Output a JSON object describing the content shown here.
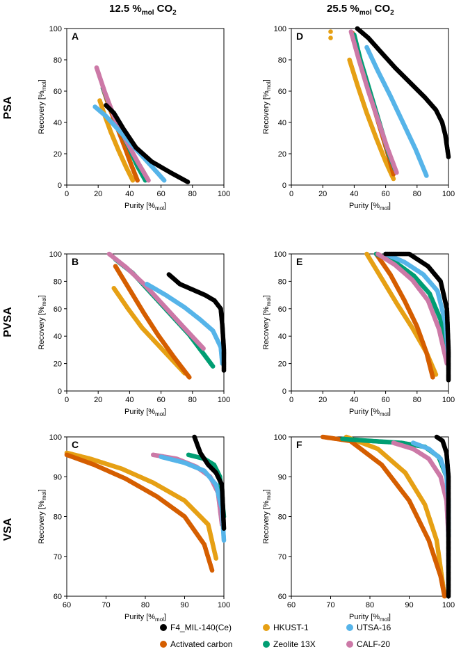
{
  "column_titles": [
    {
      "main": "12.5 %",
      "sub": "mol",
      "tail": " CO",
      "tail_sub": "2"
    },
    {
      "main": "25.5 %",
      "sub": "mol",
      "tail": " CO",
      "tail_sub": "2"
    }
  ],
  "row_titles": [
    "PSA",
    "PVSA",
    "VSA"
  ],
  "axis_labels": {
    "x": "Purity [%",
    "x_sub": "mol",
    "x_end": "]",
    "y": "Recovery [%",
    "y_sub": "mol",
    "y_end": "]"
  },
  "legend": [
    {
      "name": "F4_MIL-140(Ce)",
      "color": "#000000"
    },
    {
      "name": "HKUST-1",
      "color": "#E6A014"
    },
    {
      "name": "UTSA-16",
      "color": "#56B4E9"
    },
    {
      "name": "Activated carbon",
      "color": "#D55E00"
    },
    {
      "name": "Zeolite 13X",
      "color": "#009E73"
    },
    {
      "name": "CALF-20",
      "color": "#CC79A7"
    }
  ],
  "chart_data": [
    {
      "panel": "A",
      "type": "scatter",
      "xlim": [
        0,
        100
      ],
      "ylim": [
        0,
        100
      ],
      "xticks": [
        0,
        20,
        40,
        60,
        80,
        100
      ],
      "yticks": [
        0,
        20,
        40,
        60,
        80,
        100
      ],
      "series": [
        {
          "name": "HKUST-1",
          "x": [
            21,
            24,
            28,
            33,
            38,
            42
          ],
          "y": [
            54,
            45,
            34,
            22,
            11,
            3
          ]
        },
        {
          "name": "Activated carbon",
          "x": [
            23,
            27,
            32,
            37,
            41,
            45
          ],
          "y": [
            62,
            50,
            37,
            24,
            13,
            3
          ]
        },
        {
          "name": "Zeolite 13X",
          "x": [
            23,
            28,
            34,
            40,
            45,
            50
          ],
          "y": [
            62,
            49,
            36,
            23,
            12,
            3
          ]
        },
        {
          "name": "CALF-20",
          "x": [
            19,
            24,
            30,
            38,
            45,
            52
          ],
          "y": [
            75,
            60,
            44,
            28,
            15,
            3
          ]
        },
        {
          "name": "UTSA-16",
          "x": [
            18,
            25,
            34,
            44,
            54,
            62
          ],
          "y": [
            50,
            44,
            34,
            23,
            12,
            3
          ]
        },
        {
          "name": "F4_MIL-140(Ce)",
          "x": [
            25,
            30,
            36,
            44,
            54,
            66,
            77
          ],
          "y": [
            51,
            46,
            36,
            24,
            15,
            8,
            2
          ]
        }
      ]
    },
    {
      "panel": "D",
      "type": "scatter",
      "xlim": [
        0,
        100
      ],
      "ylim": [
        0,
        100
      ],
      "xticks": [
        0,
        20,
        40,
        60,
        80,
        100
      ],
      "yticks": [
        0,
        20,
        40,
        60,
        80,
        100
      ],
      "series": [
        {
          "name": "HKUST-1",
          "x": [
            37,
            42,
            48,
            54,
            60,
            65
          ],
          "y": [
            80,
            64,
            46,
            30,
            15,
            4
          ]
        },
        {
          "name": "HKUST-1 (isolated)",
          "x": [
            25,
            25
          ],
          "y": [
            98,
            94
          ]
        },
        {
          "name": "Activated carbon",
          "x": [
            39,
            44,
            50,
            56,
            62,
            65
          ],
          "y": [
            97,
            78,
            58,
            38,
            18,
            7
          ]
        },
        {
          "name": "Zeolite 13X",
          "x": [
            40,
            44,
            50,
            56,
            62,
            66
          ],
          "y": [
            96,
            80,
            60,
            40,
            20,
            10
          ]
        },
        {
          "name": "CALF-20",
          "x": [
            38,
            43,
            49,
            55,
            61,
            67
          ],
          "y": [
            98,
            80,
            60,
            42,
            24,
            8
          ]
        },
        {
          "name": "UTSA-16",
          "x": [
            48,
            55,
            63,
            71,
            79,
            86
          ],
          "y": [
            88,
            73,
            57,
            40,
            23,
            6
          ]
        },
        {
          "name": "F4_MIL-140(Ce)",
          "x": [
            42,
            49,
            57,
            66,
            76,
            85,
            92,
            96,
            98,
            99,
            100
          ],
          "y": [
            100,
            94,
            85,
            75,
            65,
            56,
            48,
            40,
            32,
            25,
            18
          ]
        }
      ]
    },
    {
      "panel": "B",
      "type": "scatter",
      "xlim": [
        0,
        100
      ],
      "ylim": [
        0,
        100
      ],
      "xticks": [
        0,
        20,
        40,
        60,
        80,
        100
      ],
      "yticks": [
        0,
        20,
        40,
        60,
        80,
        100
      ],
      "series": [
        {
          "name": "HKUST-1",
          "x": [
            30,
            39,
            48,
            57,
            66,
            75
          ],
          "y": [
            75,
            60,
            46,
            35,
            24,
            13
          ]
        },
        {
          "name": "Activated carbon",
          "x": [
            31,
            40,
            49,
            58,
            68,
            78
          ],
          "y": [
            91,
            74,
            57,
            41,
            25,
            10
          ]
        },
        {
          "name": "Zeolite 13X",
          "x": [
            31,
            42,
            54,
            66,
            78,
            93
          ],
          "y": [
            96,
            86,
            71,
            56,
            41,
            18
          ]
        },
        {
          "name": "CALF-20",
          "x": [
            27,
            38,
            50,
            62,
            74,
            87
          ],
          "y": [
            100,
            90,
            77,
            62,
            47,
            31
          ]
        },
        {
          "name": "UTSA-16",
          "x": [
            51,
            63,
            75,
            85,
            93,
            98,
            99
          ],
          "y": [
            78,
            70,
            61,
            52,
            44,
            32,
            20
          ]
        },
        {
          "name": "F4_MIL-140(Ce)",
          "x": [
            65,
            72,
            80,
            88,
            94,
            98,
            99,
            100,
            100
          ],
          "y": [
            85,
            78,
            74,
            70,
            66,
            60,
            48,
            30,
            15
          ]
        }
      ]
    },
    {
      "panel": "E",
      "type": "scatter",
      "xlim": [
        0,
        100
      ],
      "ylim": [
        0,
        100
      ],
      "xticks": [
        0,
        20,
        40,
        60,
        80,
        100
      ],
      "yticks": [
        0,
        20,
        40,
        60,
        80,
        100
      ],
      "series": [
        {
          "name": "HKUST-1",
          "x": [
            48,
            57,
            67,
            77,
            86,
            92
          ],
          "y": [
            100,
            83,
            64,
            46,
            28,
            12
          ]
        },
        {
          "name": "Activated carbon",
          "x": [
            54,
            63,
            72,
            80,
            86,
            90
          ],
          "y": [
            100,
            85,
            66,
            47,
            28,
            10
          ]
        },
        {
          "name": "Zeolite 13X",
          "x": [
            54,
            66,
            78,
            88,
            95,
            98
          ],
          "y": [
            100,
            94,
            84,
            71,
            52,
            27
          ]
        },
        {
          "name": "CALF-20",
          "x": [
            55,
            66,
            77,
            87,
            94,
            99
          ],
          "y": [
            100,
            92,
            81,
            66,
            45,
            20
          ]
        },
        {
          "name": "UTSA-16",
          "x": [
            60,
            72,
            84,
            93,
            98,
            100
          ],
          "y": [
            100,
            94,
            85,
            73,
            50,
            25
          ]
        },
        {
          "name": "F4_MIL-140(Ce)",
          "x": [
            60,
            75,
            87,
            95,
            99,
            100,
            100
          ],
          "y": [
            100,
            100,
            91,
            80,
            60,
            30,
            8
          ]
        }
      ]
    },
    {
      "panel": "C",
      "type": "scatter",
      "xlim": [
        60,
        100
      ],
      "ylim": [
        60,
        100
      ],
      "xticks": [
        60,
        70,
        80,
        90,
        100
      ],
      "yticks": [
        60,
        70,
        80,
        90,
        100
      ],
      "series": [
        {
          "name": "HKUST-1",
          "x": [
            60,
            66,
            74,
            82,
            90,
            96,
            98
          ],
          "y": [
            96,
            94.5,
            92,
            88.5,
            84,
            78,
            69.5
          ]
        },
        {
          "name": "Activated carbon",
          "x": [
            60,
            67,
            75,
            83,
            90,
            95,
            97
          ],
          "y": [
            95.5,
            93,
            89.5,
            85,
            80,
            73,
            66.5
          ]
        },
        {
          "name": "Zeolite 13X",
          "x": [
            91,
            95,
            97.5,
            99,
            99.5,
            100
          ],
          "y": [
            95.5,
            94.5,
            93,
            90,
            85,
            80
          ]
        },
        {
          "name": "CALF-20",
          "x": [
            82,
            88,
            93,
            96.5,
            98.5,
            99.5
          ],
          "y": [
            95.5,
            94.5,
            92.5,
            90,
            86,
            78
          ]
        },
        {
          "name": "UTSA-16",
          "x": [
            84,
            90,
            95,
            98,
            99.5,
            100
          ],
          "y": [
            95,
            93.5,
            91.5,
            88,
            82,
            74
          ]
        },
        {
          "name": "F4_MIL-140(Ce)",
          "x": [
            92.5,
            94,
            96,
            98,
            99.5,
            100
          ],
          "y": [
            100,
            96,
            93,
            91,
            88,
            77
          ]
        }
      ]
    },
    {
      "panel": "F",
      "type": "scatter",
      "xlim": [
        60,
        100
      ],
      "ylim": [
        60,
        100
      ],
      "xticks": [
        60,
        70,
        80,
        90,
        100
      ],
      "yticks": [
        60,
        70,
        80,
        90,
        100
      ],
      "series": [
        {
          "name": "HKUST-1",
          "x": [
            74,
            82,
            89,
            94,
            97,
            99
          ],
          "y": [
            100,
            97,
            91,
            83,
            74,
            60
          ]
        },
        {
          "name": "Activated carbon",
          "x": [
            68,
            75,
            83,
            90,
            95,
            98,
            99
          ],
          "y": [
            100,
            99,
            93,
            84,
            74,
            65,
            60
          ]
        },
        {
          "name": "Zeolite 13X",
          "x": [
            73,
            80,
            88,
            94,
            97.5,
            99.5
          ],
          "y": [
            99.5,
            99,
            98.5,
            97.5,
            95,
            90
          ]
        },
        {
          "name": "CALF-20",
          "x": [
            86,
            91,
            95,
            98,
            99.5,
            100
          ],
          "y": [
            98.5,
            97,
            94.5,
            90,
            84,
            75
          ]
        },
        {
          "name": "UTSA-16",
          "x": [
            91,
            95,
            98,
            99.5,
            100,
            100
          ],
          "y": [
            98.5,
            97,
            94.5,
            90,
            84,
            75
          ]
        },
        {
          "name": "F4_MIL-140(Ce)",
          "x": [
            97,
            98.5,
            99.5,
            100,
            100,
            100
          ],
          "y": [
            100,
            99,
            96,
            90,
            75,
            60
          ]
        }
      ]
    }
  ]
}
